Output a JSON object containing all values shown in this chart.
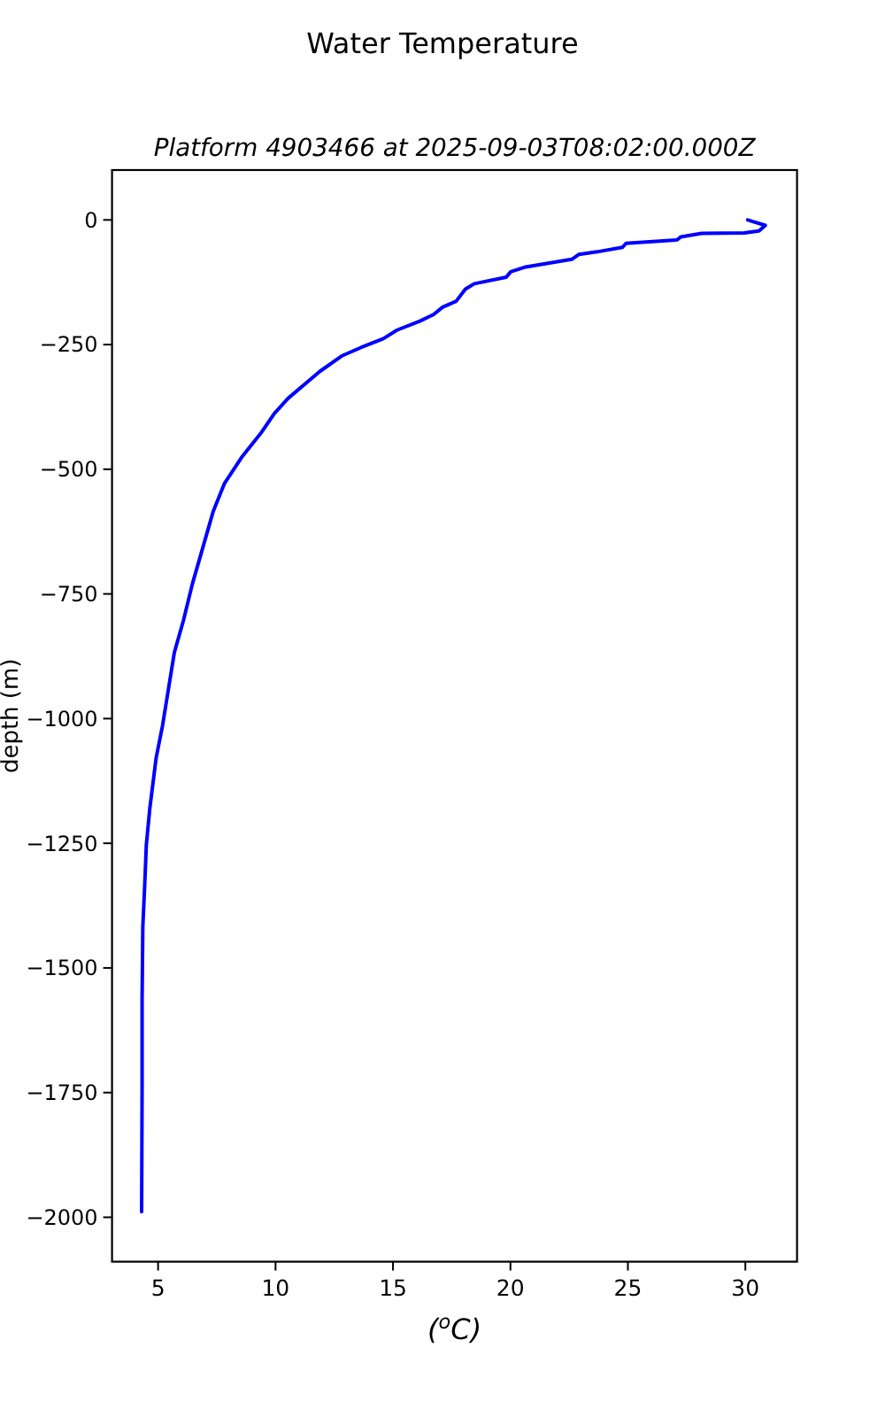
{
  "chart_data": {
    "type": "line",
    "title": "Water Temperature",
    "subtitle": "Platform 4903466 at 2025-09-03T08:02:00.000Z",
    "xlabel": "($^{o}$C)",
    "ylabel": "depth (m)",
    "x": [
      30.1,
      30.85,
      30.58,
      29.96,
      28.14,
      27.25,
      27.1,
      24.92,
      24.77,
      23.69,
      22.92,
      22.61,
      20.59,
      20.01,
      19.82,
      18.46,
      18.08,
      17.69,
      17.11,
      16.72,
      16.14,
      15.17,
      14.59,
      13.63,
      12.85,
      11.88,
      10.53,
      9.95,
      9.37,
      8.59,
      7.82,
      7.35,
      6.85,
      6.46,
      6.08,
      5.69,
      5.19,
      4.92,
      4.65,
      4.5,
      4.43,
      4.35,
      4.32,
      4.32,
      4.3
    ],
    "series": [
      {
        "color": "#0000ff",
        "values": [
          0,
          -11,
          -22,
          -26,
          -27,
          -34,
          -40,
          -47,
          -55,
          -64,
          -69,
          -79,
          -95,
          -104,
          -115,
          -128,
          -139,
          -163,
          -175,
          -190,
          -203,
          -221,
          -238,
          -256,
          -272,
          -304,
          -358,
          -388,
          -428,
          -474,
          -529,
          -584,
          -666,
          -730,
          -803,
          -868,
          -1014,
          -1078,
          -1179,
          -1253,
          -1335,
          -1418,
          -1560,
          -1738,
          -1989
        ]
      }
    ],
    "xlim": [
      3.04,
      32.2
    ],
    "ylim": [
      -2089,
      100
    ],
    "xticks": [
      5,
      10,
      15,
      20,
      25,
      30
    ],
    "yticks": [
      0,
      -250,
      -500,
      -750,
      -1000,
      -1250,
      -1500,
      -1750,
      -2000
    ]
  }
}
